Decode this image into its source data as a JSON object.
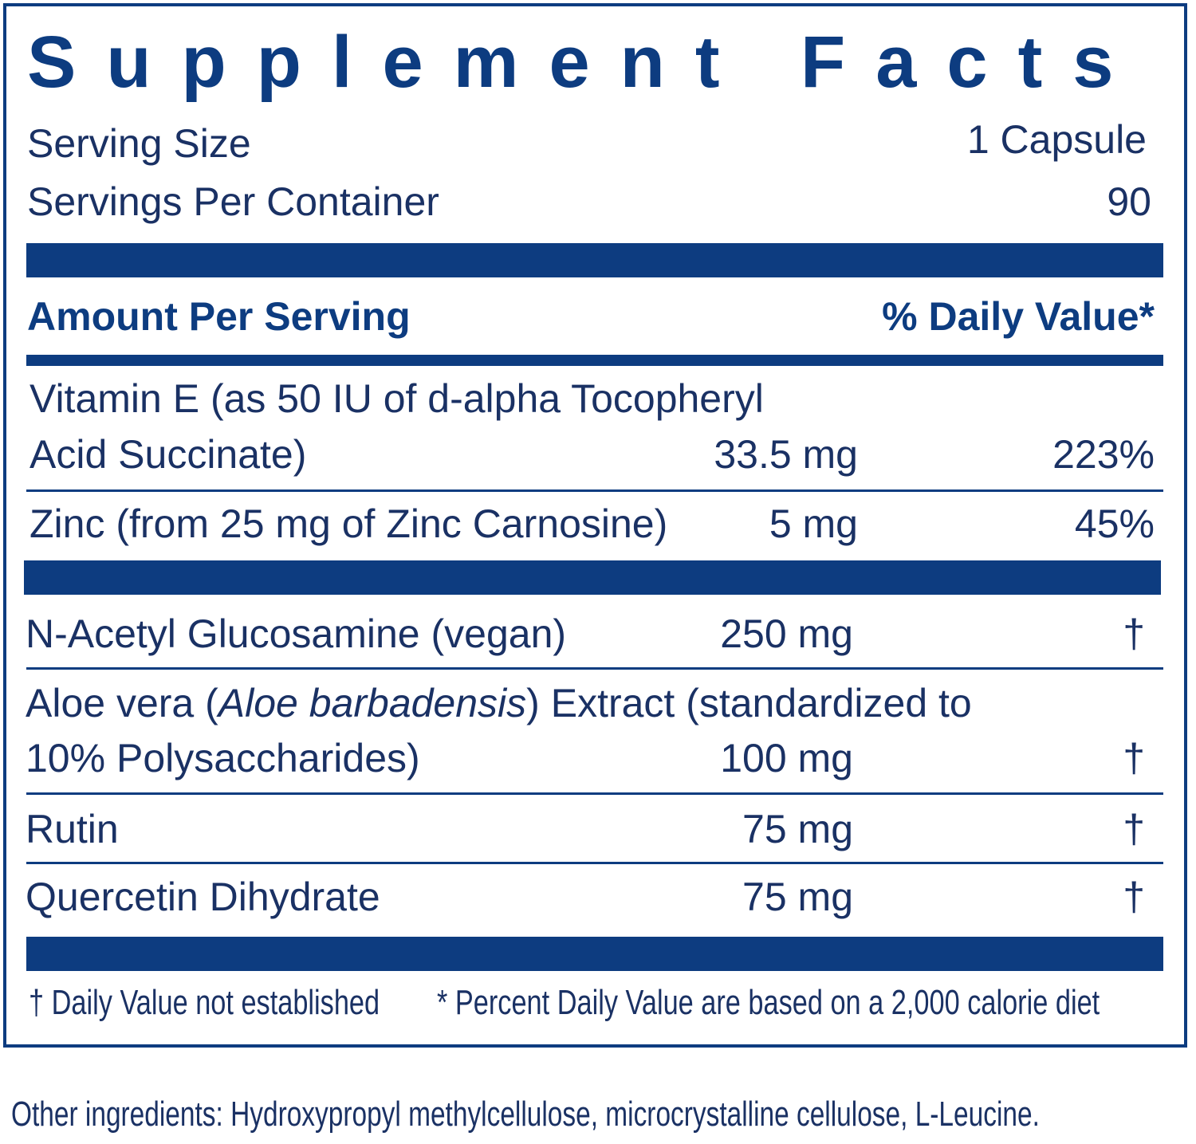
{
  "header": {
    "title": "Supplement Facts",
    "serving_size_label": "Serving Size",
    "serving_size": "1 Capsule",
    "servings_label": "Servings Per Container",
    "servings": "90"
  },
  "table": {
    "headers": [
      "Amount Per Serving",
      "% Daily Value*"
    ],
    "rows": [
      {
        "name": [
          "Vitamin E (as 50 IU of d-alpha Tocopheryl",
          "Acid Succinate)"
        ],
        "amount": "33.5 mg",
        "dv": "223%"
      },
      {
        "name": [
          "Zinc (from 25 mg of Zinc Carnosine)"
        ],
        "amount": "5 mg",
        "dv": "45%"
      },
      {
        "name": [
          "N-Acetyl Glucosamine (vegan)"
        ],
        "amount": "250 mg",
        "dv": "†"
      },
      {
        "name": [
          "Aloe vera (",
          "Aloe barbadensis",
          ") Extract (standardized to",
          "10% Polysaccharides)"
        ],
        "amount": "100 mg",
        "dv": "†"
      },
      {
        "name": [
          "Rutin"
        ],
        "amount": "75 mg",
        "dv": "†"
      },
      {
        "name": [
          "Quercetin Dihydrate"
        ],
        "amount": "75 mg",
        "dv": "†"
      }
    ]
  },
  "footnotes": [
    "† Daily Value not established",
    "* Percent Daily Value are based on a 2,000 calorie diet"
  ],
  "other_ingredients": "Other ingredients: Hydroxypropyl methylcellulose, microcrystalline cellulose, L-Leucine."
}
